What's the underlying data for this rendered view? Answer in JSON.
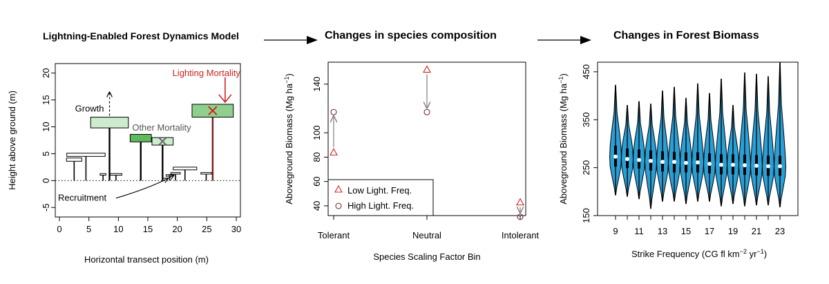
{
  "titles": {
    "model": "Lightning-Enabled Forest Dynamics Model",
    "composition": "Changes in species composition",
    "biomass": "Changes in Forest Biomass"
  },
  "colors": {
    "red": "#cc2222",
    "green_dark": "#5fba5f",
    "green_mid": "#8fd08f",
    "green_light": "#cdeccd",
    "violin": "#2a9fd6",
    "grey_arrow": "#888888"
  },
  "panel1": {
    "xlabel": "Horizontal transect position (m)",
    "ylabel": "Height above ground (m)",
    "xticks": [
      "0",
      "5",
      "10",
      "15",
      "20",
      "25",
      "30"
    ],
    "yticks": [
      "-5",
      "0",
      "5",
      "10",
      "15",
      "20"
    ],
    "xlim": [
      0,
      30
    ],
    "ylim": [
      -6,
      21
    ],
    "labels": {
      "growth": "Growth",
      "other_mortality": "Other Mortality",
      "lightning_mortality": "Lighting Mortality",
      "recruitment": "Recruitment"
    },
    "trees": [
      {
        "x": 2.5,
        "h": 3.6,
        "cw": 2.6,
        "ch": 0.6,
        "fill": "white",
        "mark": ""
      },
      {
        "x": 4.5,
        "h": 4.5,
        "cw": 6.5,
        "ch": 0.6,
        "fill": "white",
        "mark": ""
      },
      {
        "x": 7.4,
        "h": 1.0,
        "cw": 1.0,
        "ch": 0.3,
        "fill": "white",
        "mark": ""
      },
      {
        "x": 9.6,
        "h": 1.0,
        "cw": 2.0,
        "ch": 0.3,
        "fill": "white",
        "mark": ""
      },
      {
        "x": 8.5,
        "h": 9.8,
        "cw": 6.4,
        "ch": 2.0,
        "fill": "light",
        "mark": "growth"
      },
      {
        "x": 13.8,
        "h": 7.2,
        "cw": 3.6,
        "ch": 1.4,
        "fill": "dark",
        "mark": ""
      },
      {
        "x": 17.5,
        "h": 6.6,
        "cw": 3.6,
        "ch": 1.4,
        "fill": "light",
        "mark": "x-grey"
      },
      {
        "x": 18.7,
        "h": 0.8,
        "cw": 1.2,
        "ch": 0.3,
        "fill": "white",
        "mark": ""
      },
      {
        "x": 19.7,
        "h": 1.2,
        "cw": 1.6,
        "ch": 0.3,
        "fill": "white",
        "mark": ""
      },
      {
        "x": 21.3,
        "h": 2.0,
        "cw": 4.0,
        "ch": 0.5,
        "fill": "white",
        "mark": ""
      },
      {
        "x": 24.9,
        "h": 1.2,
        "cw": 1.8,
        "ch": 0.3,
        "fill": "white",
        "mark": ""
      },
      {
        "x": 26.0,
        "h": 11.8,
        "cw": 7.0,
        "ch": 2.4,
        "fill": "mid",
        "mark": "x-red"
      }
    ]
  },
  "panel2": {
    "xlabel": "Species Scaling Factor Bin",
    "ylabel_main": "Aboveground Biomass (Mg ha",
    "ylabel_sup": "−1",
    "ylabel_close": ")",
    "yticks": [
      40,
      60,
      80,
      100,
      140
    ],
    "ylim": [
      32,
      158
    ],
    "categories": [
      "Tolerant",
      "Neutral",
      "Intolerant"
    ],
    "legend": [
      {
        "label": "Low Light. Freq.",
        "shape": "triangle"
      },
      {
        "label": "High Light. Freq.",
        "shape": "circle"
      }
    ]
  },
  "chart_data": {
    "type": "scatter",
    "categories": [
      "Tolerant",
      "Neutral",
      "Intolerant"
    ],
    "series": [
      {
        "name": "Low Light. Freq.",
        "values": [
          84,
          152,
          43
        ]
      },
      {
        "name": "High Light. Freq.",
        "values": [
          117,
          117,
          31
        ]
      }
    ],
    "xlabel": "Species Scaling Factor Bin",
    "ylabel": "Aboveground Biomass (Mg ha−1)",
    "ylim": [
      32,
      158
    ],
    "legend": "bottom-left"
  },
  "panel3": {
    "xlabel_main": "Strike Frequency (CG fl km",
    "xlabel_sup1": "−2",
    "xlabel_mid": " yr",
    "xlabel_sup2": "−1",
    "xlabel_close": ")",
    "ylabel_main": "Aboveground Biomass (Mg ha",
    "ylabel_sup": "−1",
    "ylabel_close": ")",
    "xticks": [
      "9",
      "11",
      "13",
      "15",
      "17",
      "19",
      "21",
      "23"
    ],
    "yticks": [
      150,
      250,
      350,
      450
    ],
    "ylim": [
      150,
      470
    ],
    "violins": [
      {
        "x": 9,
        "min": 193,
        "q1": 252,
        "median": 273,
        "q3": 296,
        "max": 422
      },
      {
        "x": 10,
        "min": 190,
        "q1": 249,
        "median": 268,
        "q3": 290,
        "max": 380
      },
      {
        "x": 11,
        "min": 185,
        "q1": 248,
        "median": 266,
        "q3": 288,
        "max": 388
      },
      {
        "x": 12,
        "min": 165,
        "q1": 244,
        "median": 264,
        "q3": 286,
        "max": 383
      },
      {
        "x": 13,
        "min": 180,
        "q1": 242,
        "median": 262,
        "q3": 284,
        "max": 410
      },
      {
        "x": 14,
        "min": 180,
        "q1": 240,
        "median": 262,
        "q3": 283,
        "max": 418
      },
      {
        "x": 15,
        "min": 175,
        "q1": 240,
        "median": 260,
        "q3": 282,
        "max": 395
      },
      {
        "x": 16,
        "min": 180,
        "q1": 240,
        "median": 261,
        "q3": 282,
        "max": 425
      },
      {
        "x": 17,
        "min": 180,
        "q1": 238,
        "median": 258,
        "q3": 280,
        "max": 405
      },
      {
        "x": 18,
        "min": 170,
        "q1": 236,
        "median": 256,
        "q3": 278,
        "max": 435
      },
      {
        "x": 19,
        "min": 175,
        "q1": 236,
        "median": 256,
        "q3": 278,
        "max": 380
      },
      {
        "x": 20,
        "min": 170,
        "q1": 235,
        "median": 255,
        "q3": 277,
        "max": 448
      },
      {
        "x": 21,
        "min": 172,
        "q1": 234,
        "median": 254,
        "q3": 276,
        "max": 445
      },
      {
        "x": 22,
        "min": 172,
        "q1": 233,
        "median": 253,
        "q3": 275,
        "max": 440
      },
      {
        "x": 23,
        "min": 168,
        "q1": 233,
        "median": 253,
        "q3": 275,
        "max": 470
      }
    ]
  }
}
